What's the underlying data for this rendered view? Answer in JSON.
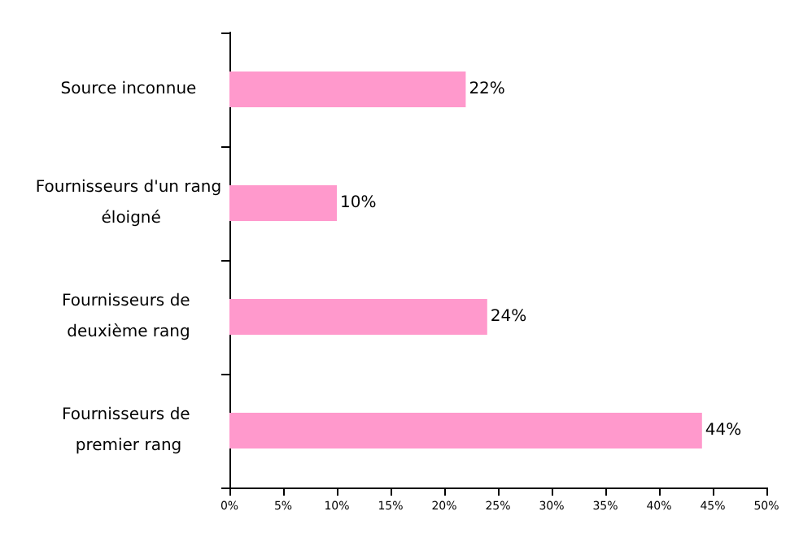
{
  "chart_data": {
    "type": "bar",
    "orientation": "horizontal",
    "categories": [
      "Source inconnue",
      "Fournisseurs d'un rang éloigné",
      "Fournisseurs de deuxième rang",
      "Fournisseurs de premier rang"
    ],
    "values": [
      22,
      10,
      24,
      44
    ],
    "color": "#ff99cc",
    "value_labels": [
      "22%",
      "10%",
      "24%",
      "44%"
    ],
    "xlim": [
      0,
      50
    ],
    "xticks": [
      {
        "value": 0,
        "label": "0%"
      },
      {
        "value": 5,
        "label": "5%"
      },
      {
        "value": 10,
        "label": "10%"
      },
      {
        "value": 15,
        "label": "15%"
      },
      {
        "value": 20,
        "label": "20%"
      },
      {
        "value": 25,
        "label": "25%"
      },
      {
        "value": 30,
        "label": "30%"
      },
      {
        "value": 35,
        "label": "35%"
      },
      {
        "value": 40,
        "label": "40%"
      },
      {
        "value": 45,
        "label": "45%"
      },
      {
        "value": 50,
        "label": "50%"
      }
    ],
    "grid": false
  }
}
